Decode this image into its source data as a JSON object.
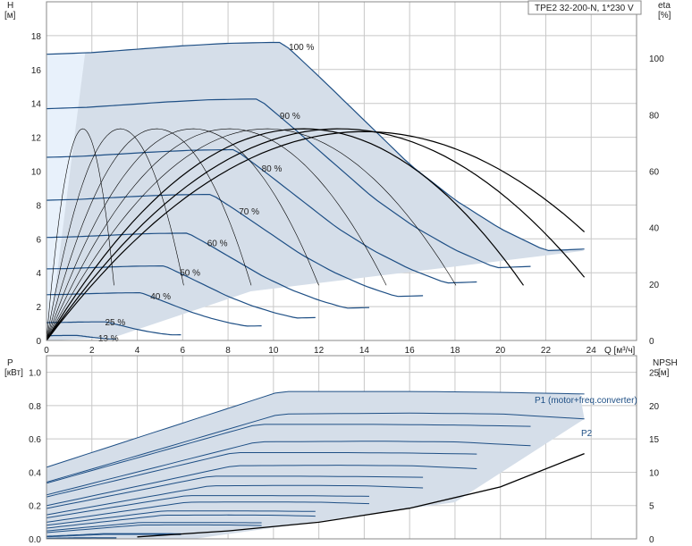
{
  "title": "TPE2 32-200-N, 1*230 V",
  "colors": {
    "area": "#d5dee9",
    "area_light": "#e8f1fb",
    "curve": "#1e4f85",
    "eff": "#000000",
    "grid": "#c8c8c8",
    "frame": "#888888"
  },
  "chart_data": [
    {
      "type": "line",
      "name": "head",
      "ylabel_lines": [
        "H",
        "[м]"
      ],
      "y2label_lines": [
        "eta",
        "[%]"
      ],
      "xlabel": "Q [м³/ч]",
      "xlim": [
        0,
        26
      ],
      "ylim": [
        0,
        20
      ],
      "y2lim": [
        0,
        120
      ],
      "x_ticks": [
        "0",
        "2",
        "4",
        "6",
        "8",
        "10",
        "12",
        "14",
        "16",
        "18",
        "20",
        "22",
        "24"
      ],
      "y_ticks": [
        "0",
        "2",
        "4",
        "6",
        "8",
        "10",
        "12",
        "14",
        "16",
        "18"
      ],
      "y2_ticks": [
        "0",
        "20",
        "40",
        "60",
        "80",
        "100"
      ],
      "speed_labels": [
        "100 %",
        "90 %",
        "80 %",
        "70 %",
        "60 %",
        "50 %",
        "40 %",
        "25 %",
        "13 %"
      ],
      "speed_fractions": [
        1.0,
        0.9,
        0.8,
        0.7,
        0.6,
        0.5,
        0.4,
        0.25,
        0.13
      ],
      "curve_100": {
        "q": [
          0,
          2,
          4,
          6,
          8,
          10,
          10.4,
          12,
          14,
          16,
          18,
          20,
          22,
          23.7
        ],
        "h": [
          16.9,
          17.0,
          17.2,
          17.4,
          17.55,
          17.6,
          17.6,
          15.6,
          13.0,
          10.4,
          8.3,
          6.6,
          5.3,
          5.4
        ]
      },
      "eff_curves": [
        {
          "qmax": 3.2,
          "peak": 7.5
        },
        {
          "qmax": 6.5,
          "peak": 7.5
        },
        {
          "qmax": 9.7,
          "peak": 7.5
        },
        {
          "qmax": 12.9,
          "peak": 7.5
        },
        {
          "qmax": 16.1,
          "peak": 7.5
        },
        {
          "qmax": 19.4,
          "peak": 7.5
        },
        {
          "qmax": 22.6,
          "peak": 7.5
        },
        {
          "qmax": 25.8,
          "peak": 7.5
        },
        {
          "qmax": 28.0,
          "peak": 7.4
        }
      ]
    },
    {
      "type": "line",
      "name": "power",
      "ylabel_lines": [
        "P",
        "[кВт]"
      ],
      "y2label_lines": [
        "NPSH",
        "[м]"
      ],
      "xlim": [
        0,
        26
      ],
      "ylim": [
        0,
        1.1
      ],
      "y2lim": [
        0,
        27.5
      ],
      "y_ticks": [
        "0.0",
        "0.2",
        "0.4",
        "0.6",
        "0.8",
        "1.0"
      ],
      "y2_ticks": [
        "0",
        "5",
        "10",
        "15",
        "20",
        "25"
      ],
      "series": [
        {
          "name": "P1 (motor+freq.converter)",
          "q": [
            0,
            10.3,
            16,
            20,
            23.7
          ],
          "p": [
            0.43,
            0.885,
            0.885,
            0.88,
            0.87
          ]
        },
        {
          "name": "P2",
          "q": [
            0,
            10.3,
            16,
            20,
            23.7
          ],
          "p": [
            0.34,
            0.75,
            0.755,
            0.75,
            0.72
          ]
        }
      ],
      "npsh": {
        "q": [
          4,
          8,
          12,
          16,
          20,
          23.7
        ],
        "npsh": [
          0.3,
          1.2,
          2.5,
          4.6,
          7.8,
          12.8
        ]
      }
    }
  ]
}
